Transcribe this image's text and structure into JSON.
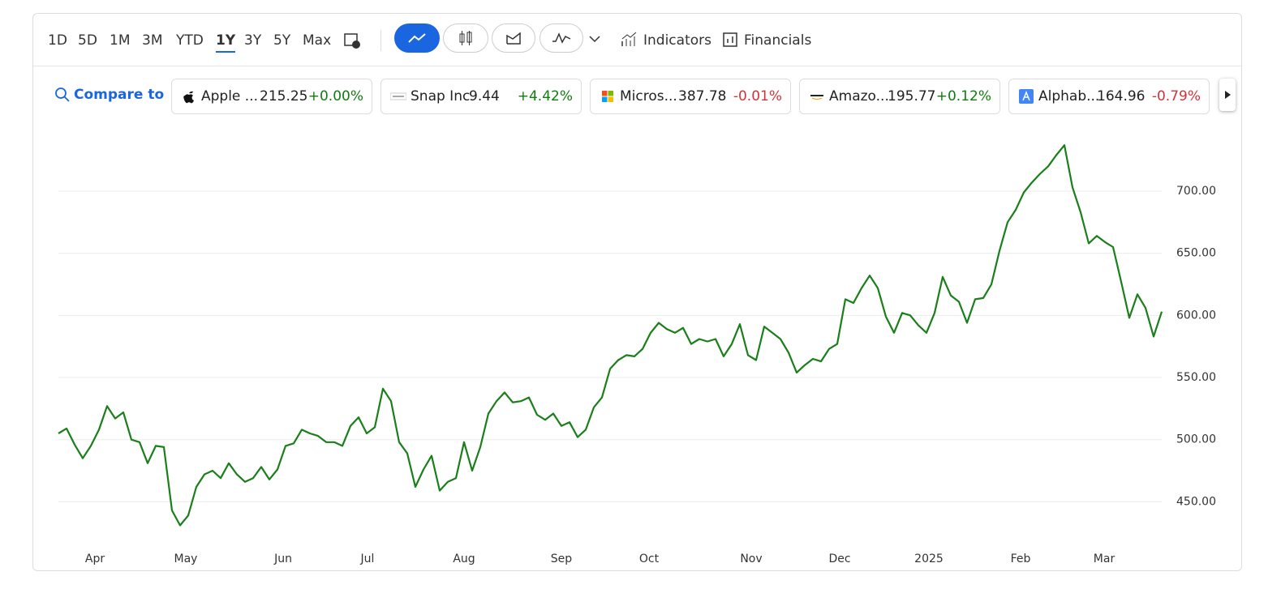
{
  "toolbar": {
    "ranges": [
      "1D",
      "5D",
      "1M",
      "3M",
      "YTD",
      "1Y",
      "3Y",
      "5Y",
      "Max"
    ],
    "selected_range_index": 5,
    "indicators": "Indicators",
    "financials": "Financials"
  },
  "compare": {
    "label": "Compare to",
    "tickers": [
      {
        "name": "Apple ...",
        "price": "215.25",
        "change": "+0.00%",
        "color": "#107c10"
      },
      {
        "name": "Snap Inc",
        "price": "9.44",
        "change": "+4.42%",
        "color": "#107c10"
      },
      {
        "name": "Micros...",
        "price": "387.78",
        "change": "-0.01%",
        "color": "#d13438"
      },
      {
        "name": "Amazo...",
        "price": "195.77",
        "change": "+0.12%",
        "color": "#107c10"
      },
      {
        "name": "Alphab...",
        "price": "164.96",
        "change": "-0.79%",
        "color": "#d13438"
      }
    ]
  },
  "chart_data": {
    "type": "line",
    "color": "#1a7f1a",
    "grid": true,
    "values": [
      505,
      509,
      496,
      485,
      495,
      508,
      527,
      517,
      522,
      500,
      498,
      481,
      495,
      494,
      443,
      431,
      439,
      462,
      472,
      475,
      469,
      481,
      472,
      466,
      469,
      478,
      468,
      476,
      495,
      497,
      508,
      505,
      503,
      498,
      498,
      495,
      511,
      518,
      505,
      510,
      541,
      531,
      498,
      489,
      462,
      476,
      487,
      459,
      466,
      469,
      498,
      475,
      494,
      521,
      531,
      538,
      530,
      531,
      534,
      520,
      516,
      521,
      511,
      514,
      502,
      508,
      526,
      534,
      557,
      564,
      568,
      567,
      573,
      586,
      594,
      589,
      586,
      590,
      577,
      581,
      579,
      581,
      567,
      577,
      593,
      568,
      564,
      591,
      586,
      581,
      570,
      554,
      560,
      565,
      563,
      573,
      577,
      613,
      610,
      622,
      632,
      622,
      599,
      586,
      602,
      600,
      592,
      586,
      602,
      631,
      616,
      611,
      594,
      613,
      614,
      625,
      652,
      675,
      685,
      699,
      707,
      714,
      720,
      729,
      737,
      703,
      683,
      658,
      664,
      659,
      655,
      627,
      598,
      617,
      606,
      583,
      603
    ],
    "xlim": [
      0,
      136
    ],
    "xticks": [
      {
        "value": 4.5,
        "label": "Apr"
      },
      {
        "value": 15.7,
        "label": "May"
      },
      {
        "value": 27.7,
        "label": "Jun"
      },
      {
        "value": 38.1,
        "label": "Jul"
      },
      {
        "value": 50,
        "label": "Aug"
      },
      {
        "value": 62,
        "label": "Sep"
      },
      {
        "value": 72.8,
        "label": "Oct"
      },
      {
        "value": 85.4,
        "label": "Nov"
      },
      {
        "value": 96.3,
        "label": "Dec"
      },
      {
        "value": 107.3,
        "label": "2025"
      },
      {
        "value": 118.6,
        "label": "Feb"
      },
      {
        "value": 128.9,
        "label": "Mar"
      }
    ],
    "ylim": [
      417,
      743
    ],
    "yticks": [
      {
        "value": 450,
        "label": "450.00"
      },
      {
        "value": 500,
        "label": "500.00"
      },
      {
        "value": 550,
        "label": "550.00"
      },
      {
        "value": 600,
        "label": "600.00"
      },
      {
        "value": 650,
        "label": "650.00"
      },
      {
        "value": 700,
        "label": "700.00"
      }
    ]
  }
}
